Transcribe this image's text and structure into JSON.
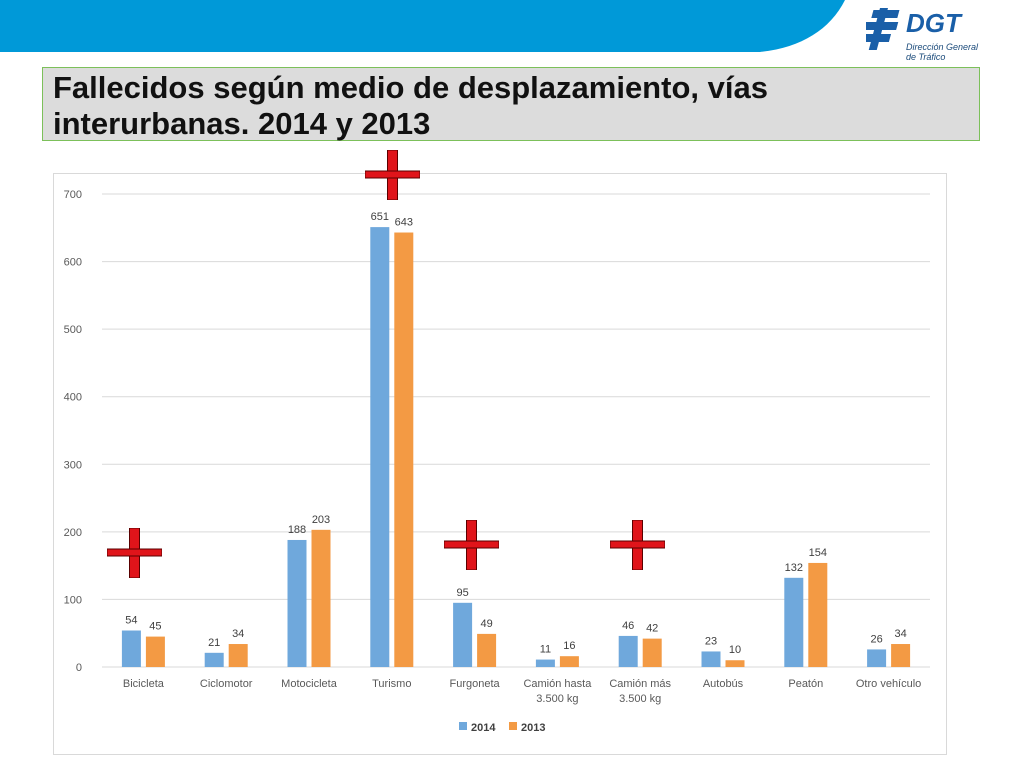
{
  "header": {
    "logo_text": "DGT",
    "logo_subtitle_line1": "Dirección General",
    "logo_subtitle_line2": "de Tráfico",
    "banner_color": "#0099d8"
  },
  "title": "Fallecidos según medio de desplazamiento, vías interurbanas. 2014 y 2013",
  "chart_data": {
    "type": "bar",
    "categories": [
      "Bicicleta",
      "Ciclomotor",
      "Motocicleta",
      "Turismo",
      "Furgoneta",
      "Camión hasta 3.500 kg",
      "Camión más 3.500 kg",
      "Autobús",
      "Peatón",
      "Otro vehículo"
    ],
    "series": [
      {
        "name": "2014",
        "color": "#6fa8dc",
        "values": [
          54,
          21,
          188,
          651,
          95,
          11,
          46,
          23,
          132,
          26
        ]
      },
      {
        "name": "2013",
        "color": "#f39a44",
        "values": [
          45,
          34,
          203,
          643,
          49,
          16,
          42,
          10,
          154,
          34
        ]
      }
    ],
    "ylim": [
      0,
      700
    ],
    "yticks": [
      0,
      100,
      200,
      300,
      400,
      500,
      600,
      700
    ],
    "grid": true,
    "legend": "bottom"
  },
  "annotations": {
    "crosses_on_categories": [
      "Bicicleta",
      "Turismo",
      "Furgoneta",
      "Camión más 3.500 kg"
    ],
    "cross_color": "#e0141a"
  }
}
